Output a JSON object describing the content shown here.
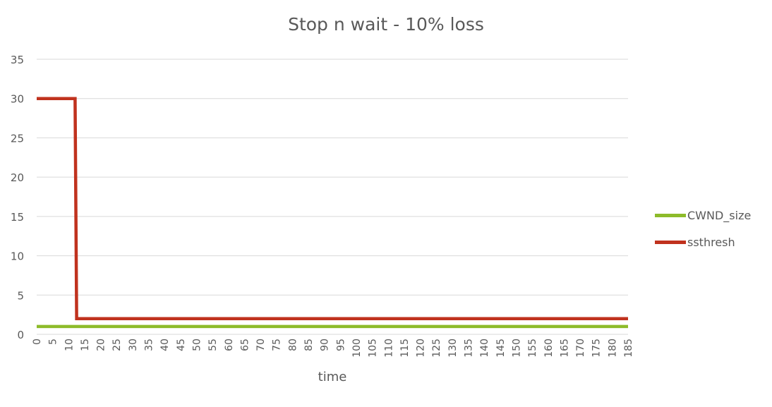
{
  "chart_data": {
    "type": "line",
    "title": "Stop n wait - 10% loss",
    "xlabel": "time",
    "ylabel": "",
    "xlim": [
      0,
      185
    ],
    "ylim": [
      0,
      35
    ],
    "y_ticks": [
      "0",
      "5",
      "10",
      "15",
      "20",
      "25",
      "30",
      "35"
    ],
    "x_ticks": [
      "0",
      "5",
      "10",
      "15",
      "20",
      "25",
      "30",
      "35",
      "40",
      "45",
      "50",
      "55",
      "60",
      "65",
      "70",
      "75",
      "80",
      "85",
      "90",
      "95",
      "100",
      "105",
      "110",
      "115",
      "120",
      "125",
      "130",
      "135",
      "140",
      "145",
      "150",
      "155",
      "160",
      "165",
      "170",
      "175",
      "180",
      "185"
    ],
    "grid": "horizontal",
    "legend_position": "right",
    "series": [
      {
        "name": "CWND_size",
        "color": "#8dbb2a",
        "points": [
          [
            0,
            1
          ],
          [
            185,
            1
          ]
        ]
      },
      {
        "name": "ssthresh",
        "color": "#c0321e",
        "points": [
          [
            0,
            30
          ],
          [
            12,
            30
          ],
          [
            12.5,
            2
          ],
          [
            185,
            2
          ]
        ]
      }
    ]
  }
}
